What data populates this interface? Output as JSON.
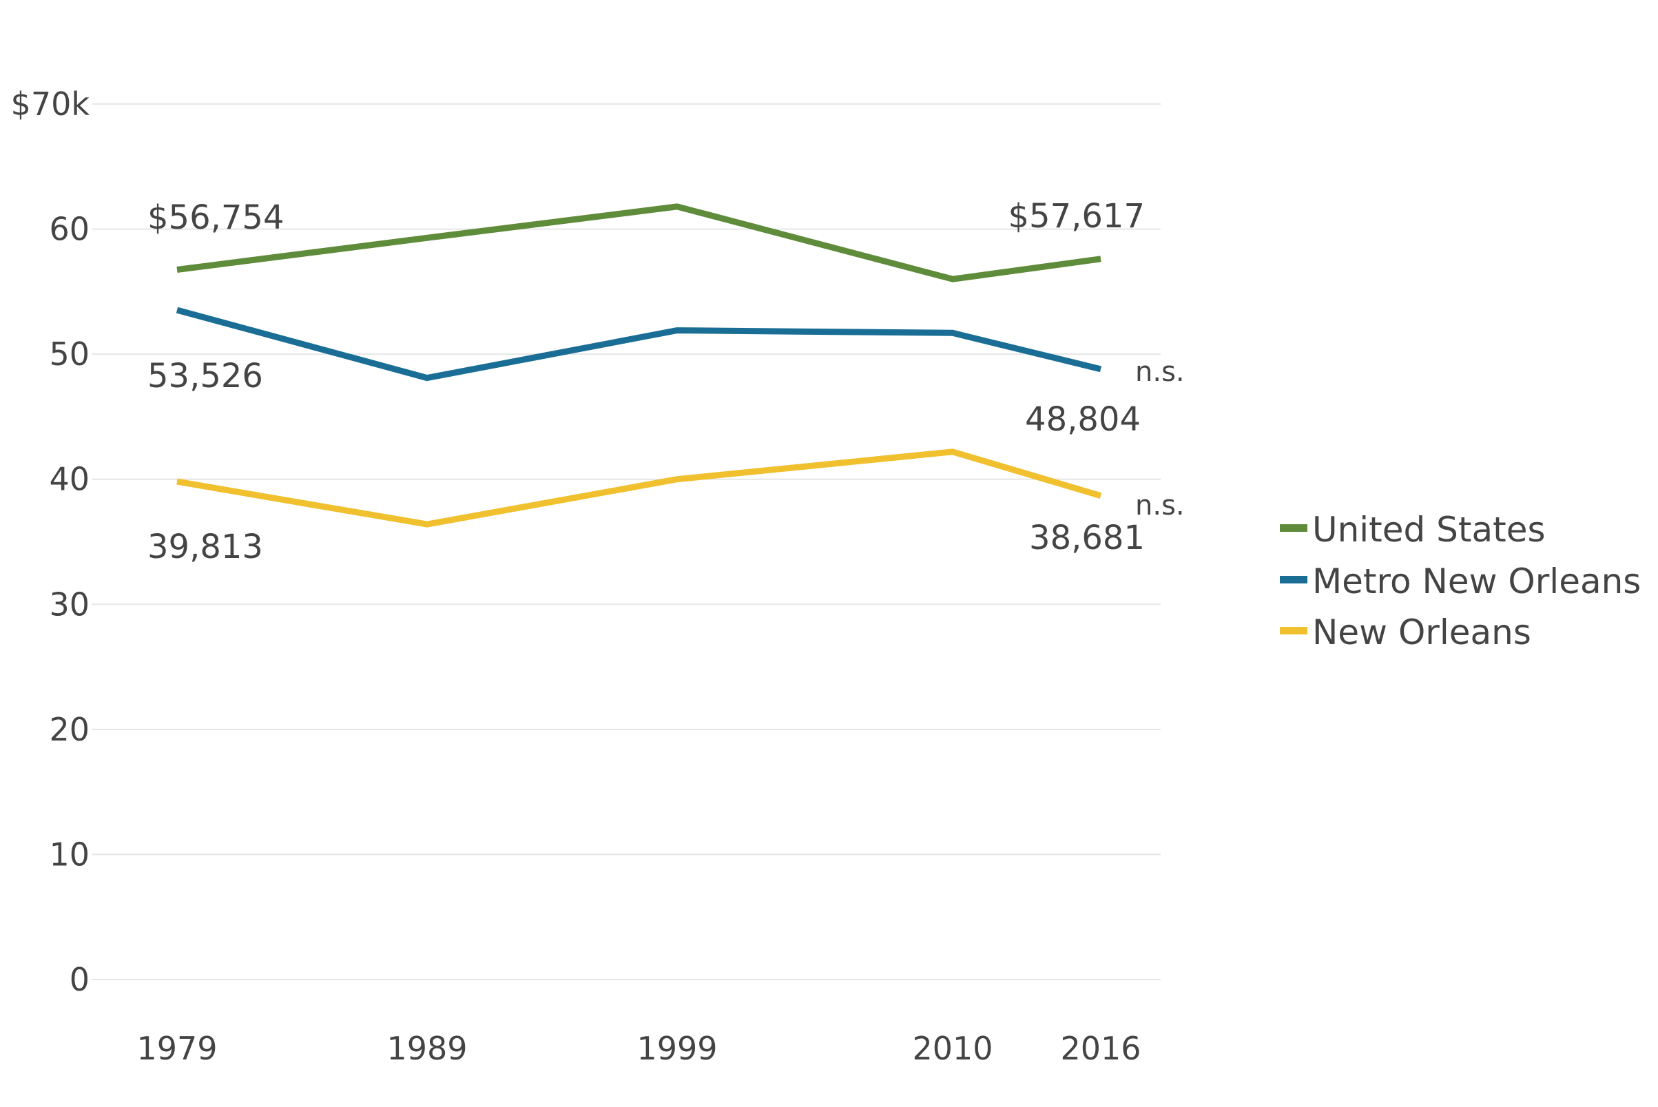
{
  "chart_data": {
    "type": "line",
    "title": "",
    "xlabel": "",
    "ylabel": "",
    "x": [
      1979,
      1989,
      1999,
      2010,
      2016
    ],
    "x_tick_labels": [
      "1979",
      "1989",
      "1999",
      "2010",
      "2016"
    ],
    "ylim": [
      0,
      70000
    ],
    "y_ticks": [
      0,
      10000,
      20000,
      30000,
      40000,
      50000,
      60000,
      70000
    ],
    "y_tick_labels": [
      "0",
      "10",
      "20",
      "30",
      "40",
      "50",
      "60",
      "$70k"
    ],
    "grid": true,
    "legend_position": "right",
    "series": [
      {
        "name": "United States",
        "color": "#5e8c3a",
        "values": [
          56754,
          59300,
          61800,
          56000,
          57617
        ],
        "start_label": "$56,754",
        "end_label": "$57,617",
        "end_note": ""
      },
      {
        "name": "Metro New Orleans",
        "color": "#1a6e96",
        "values": [
          53526,
          48100,
          51900,
          51700,
          48804
        ],
        "start_label": "53,526",
        "end_label": "48,804",
        "end_note": "n.s."
      },
      {
        "name": "New Orleans",
        "color": "#f0c02f",
        "values": [
          39813,
          36400,
          40000,
          42200,
          38681
        ],
        "start_label": "39,813",
        "end_label": "38,681",
        "end_note": "n.s."
      }
    ]
  }
}
